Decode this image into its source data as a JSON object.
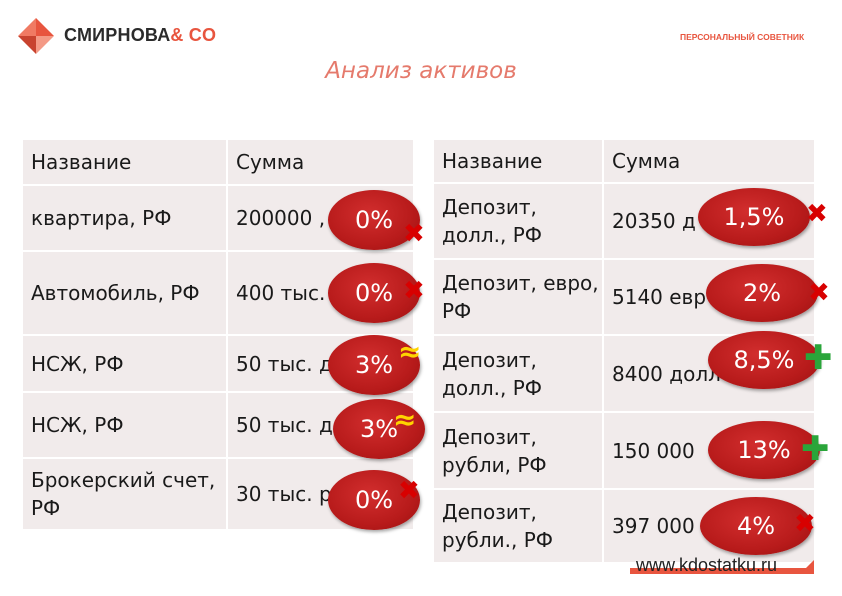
{
  "header": {
    "brand_main": "СМИРНОВА",
    "brand_suffix": "& CO",
    "advisor": "ПЕРСОНАЛЬНЫЙ СОВЕТНИК",
    "logo_icon": "triangles-logo-icon"
  },
  "title": "Анализ активов",
  "left_table": {
    "headers": [
      "Название",
      "Сумма"
    ],
    "rows": [
      {
        "name": "квартира, РФ",
        "sum": "200000 ,",
        "rate": "0%",
        "mark": "cross"
      },
      {
        "name": "Автомобиль, РФ",
        "sum": "400 тыс.",
        "rate": "0%",
        "mark": "cross"
      },
      {
        "name": "НСЖ, РФ",
        "sum": "50 тыс. д",
        "rate": "3%",
        "mark": "approx"
      },
      {
        "name": "НСЖ, РФ",
        "sum": "50 тыс. д",
        "rate": "3%",
        "mark": "approx"
      },
      {
        "name": "Брокерский счет, РФ",
        "sum": "30 тыс. р",
        "rate": "0%",
        "mark": "cross"
      }
    ]
  },
  "right_table": {
    "headers": [
      "Название",
      "Сумма"
    ],
    "rows": [
      {
        "name": "Депозит, долл., РФ",
        "sum": "20350 д",
        "rate": "1,5%",
        "mark": "cross"
      },
      {
        "name": "Депозит, евро, РФ",
        "sum": "5140 евр",
        "rate": "2%",
        "mark": "cross"
      },
      {
        "name": "Депозит, долл., РФ",
        "sum": "8400 долл",
        "rate": "8,5%",
        "mark": "plus"
      },
      {
        "name": "Депозит, рубли, РФ",
        "sum": "150 000",
        "rate": "13%",
        "mark": "plus"
      },
      {
        "name": "Депозит, рубли., РФ",
        "sum": "397 000",
        "rate": "4%",
        "mark": "cross"
      }
    ]
  },
  "marks": {
    "cross": "✖",
    "approx": "≈",
    "plus": "✚"
  },
  "colors": {
    "brand_accent": "#e8553f",
    "badge": "#c02020",
    "cross": "#d80000",
    "approx": "#ffd400",
    "plus": "#2aa53a",
    "table_bg": "#f1ebeb"
  },
  "footer": {
    "url": "www.kdostatku.ru"
  }
}
